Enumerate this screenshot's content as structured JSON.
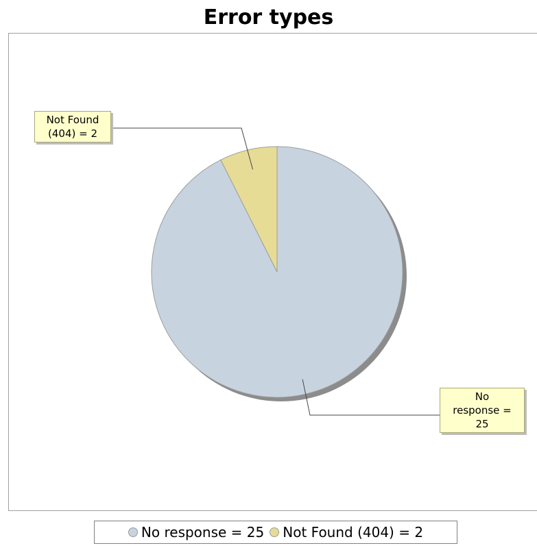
{
  "chart_data": {
    "type": "pie",
    "title": "Error types",
    "slices": [
      {
        "name": "No response",
        "value": 25,
        "label": "No response = 25",
        "legend": "No response = 25",
        "color": "#c7d4df"
      },
      {
        "name": "Not Found (404)",
        "value": 2,
        "label": "Not Found (404) = 2",
        "legend": "Not Found (404) = 2",
        "color": "#e6dc96"
      }
    ],
    "legend_position": "bottom",
    "label_style": "callout"
  },
  "labels": {
    "not_found_line1": "Not Found",
    "not_found_line2": "(404) = 2",
    "no_response_line1": "No",
    "no_response_line2": "response =",
    "no_response_line3": "25"
  }
}
